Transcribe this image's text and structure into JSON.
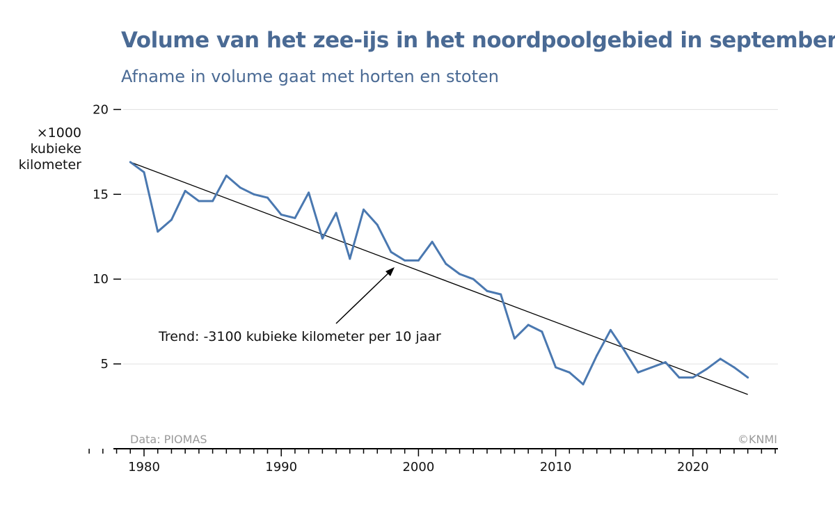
{
  "header": {
    "title": "Volume van het zee-ijs in het noordpoolgebied in september",
    "subtitle": "Afname in volume gaat met horten en stoten"
  },
  "colors": {
    "title": "#4a6a94",
    "series": "#4a78b0",
    "trend": "#000000",
    "grid": "#e0e0e0",
    "credit": "#999999"
  },
  "chart_data": {
    "type": "line",
    "ylabel": [
      "×1000",
      "kubieke",
      "kilometer"
    ],
    "ylim": [
      0,
      20
    ],
    "xlim": [
      1976,
      2026
    ],
    "yticks": [
      5,
      10,
      15,
      20
    ],
    "xticks_labeled": [
      1980,
      1990,
      2000,
      2010,
      2020
    ],
    "grid": "horizontal",
    "series": [
      {
        "x": [
          1979,
          1980,
          1981,
          1982,
          1983,
          1984,
          1985,
          1986,
          1987,
          1988,
          1989,
          1990,
          1991,
          1992,
          1993,
          1994,
          1995,
          1996,
          1997,
          1998,
          1999,
          2000,
          2001,
          2002,
          2003,
          2004,
          2005,
          2006,
          2007,
          2008,
          2009,
          2010,
          2011,
          2012,
          2013,
          2014,
          2015,
          2016,
          2017,
          2018,
          2019,
          2020,
          2021,
          2022,
          2023,
          2024
        ],
        "values": [
          16.9,
          16.3,
          12.8,
          13.5,
          15.2,
          14.6,
          14.6,
          16.1,
          15.4,
          15.0,
          14.8,
          13.8,
          13.6,
          15.1,
          12.4,
          13.9,
          11.2,
          14.1,
          13.2,
          11.6,
          11.1,
          11.1,
          12.2,
          10.9,
          10.3,
          10.0,
          9.3,
          9.1,
          6.5,
          7.3,
          6.9,
          4.8,
          4.5,
          3.8,
          5.5,
          7.0,
          5.8,
          4.5,
          4.8,
          5.1,
          4.2,
          4.2,
          4.7,
          5.3,
          4.8,
          4.2
        ]
      }
    ],
    "trend": {
      "x": [
        1979,
        2024
      ],
      "values": [
        16.9,
        3.2
      ]
    },
    "annotation": {
      "text": "Trend: -3100 kubieke kilometer per 10 jaar"
    },
    "credits": {
      "source": "Data: PIOMAS",
      "copyright": "©KNMI"
    }
  }
}
